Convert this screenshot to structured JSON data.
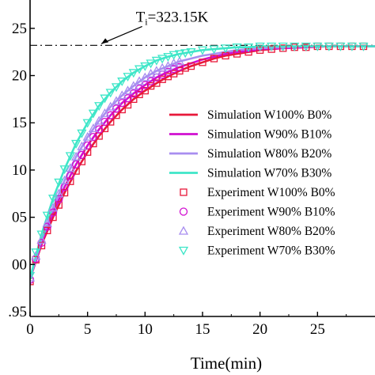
{
  "chart_data": {
    "type": "line",
    "xlabel": "Time(min)",
    "ylabel": "",
    "xlim": [
      0,
      30
    ],
    "ylim": [
      -5.5,
      28
    ],
    "x_ticks": [
      0,
      5,
      10,
      15,
      20,
      25
    ],
    "y_ticks": [
      0,
      5,
      10,
      15,
      20,
      25
    ],
    "x_tick_labels": [
      "0",
      "5",
      "10",
      "15",
      "20",
      "25"
    ],
    "y_tick_labels": [
      ".95",
      "00",
      "05",
      "10",
      "15",
      "20",
      "25"
    ],
    "y_tick_label_values": [
      -5,
      0,
      5,
      10,
      15,
      20,
      25
    ],
    "grid": false,
    "legend_position": "center-right",
    "reference_line": {
      "y": 23.2,
      "style": "dash-dot",
      "label": "T",
      "label_sub": "i",
      "label_value": "=323.15K"
    },
    "simulation_series": [
      {
        "name": "Simulation W100% B0%",
        "color": "#e8183a",
        "x": [
          0,
          1,
          2,
          3,
          4,
          5,
          6,
          7,
          8,
          9,
          10,
          11,
          12,
          13,
          14,
          15,
          16,
          17,
          18,
          19,
          20,
          22,
          24,
          26,
          28,
          30
        ],
        "values": [
          -1.5,
          2.1,
          5.0,
          7.6,
          9.9,
          11.9,
          13.6,
          15.1,
          16.4,
          17.5,
          18.4,
          19.2,
          19.9,
          20.5,
          21.0,
          21.4,
          21.8,
          22.1,
          22.3,
          22.5,
          22.7,
          22.9,
          23.0,
          23.1,
          23.1,
          23.1
        ]
      },
      {
        "name": "Simulation W90% B10%",
        "color": "#d10fd1",
        "x": [
          0,
          1,
          2,
          3,
          4,
          5,
          6,
          7,
          8,
          9,
          10,
          11,
          12,
          13,
          14,
          15,
          16,
          17,
          18,
          19,
          20,
          22,
          24,
          26,
          28,
          30
        ],
        "values": [
          -1.5,
          2.3,
          5.5,
          8.2,
          10.6,
          12.6,
          14.3,
          15.8,
          17.1,
          18.1,
          19.0,
          19.8,
          20.4,
          20.9,
          21.3,
          21.7,
          22.0,
          22.3,
          22.5,
          22.6,
          22.8,
          22.9,
          23.0,
          23.1,
          23.1,
          23.1
        ]
      },
      {
        "name": "Simulation W80% B20%",
        "color": "#a88ef0",
        "x": [
          0,
          1,
          2,
          3,
          4,
          5,
          6,
          7,
          8,
          9,
          10,
          11,
          12,
          13,
          14,
          15,
          16,
          17,
          18,
          19,
          20,
          22,
          24,
          26,
          28,
          30
        ],
        "values": [
          -1.5,
          2.6,
          6.0,
          8.9,
          11.4,
          13.5,
          15.2,
          16.7,
          17.9,
          18.9,
          19.8,
          20.5,
          21.0,
          21.5,
          21.8,
          22.1,
          22.3,
          22.5,
          22.7,
          22.8,
          22.9,
          23.0,
          23.1,
          23.1,
          23.1,
          23.1
        ]
      },
      {
        "name": "Simulation W70% B30%",
        "color": "#3ee6c8",
        "x": [
          0,
          1,
          2,
          3,
          4,
          5,
          6,
          7,
          8,
          9,
          10,
          11,
          12,
          13,
          14,
          15,
          16,
          17,
          18,
          19,
          20,
          22,
          24,
          26,
          28,
          30
        ],
        "values": [
          -1.5,
          3.2,
          7.0,
          10.1,
          12.8,
          15.0,
          16.8,
          18.2,
          19.4,
          20.3,
          21.0,
          21.6,
          22.0,
          22.3,
          22.5,
          22.7,
          22.8,
          22.9,
          23.0,
          23.0,
          23.1,
          23.1,
          23.1,
          23.1,
          23.1,
          23.1
        ]
      }
    ],
    "experiment_series": [
      {
        "name": "Experiment W100% B0%",
        "color": "#e8183a",
        "marker": "square",
        "x": [
          0,
          0.5,
          1,
          1.5,
          2,
          2.5,
          3,
          3.5,
          4,
          4.5,
          5,
          5.5,
          6,
          6.5,
          7,
          7.5,
          8,
          8.5,
          9,
          9.5,
          10,
          10.5,
          11,
          11.5,
          12,
          12.5,
          13,
          13.5,
          14,
          15,
          16,
          17,
          18,
          19,
          20,
          21,
          22,
          23,
          24,
          25,
          26,
          27,
          28,
          29
        ],
        "values": [
          -1.8,
          0.5,
          2.0,
          3.6,
          5.0,
          6.3,
          7.6,
          8.8,
          9.9,
          10.9,
          11.9,
          12.8,
          13.6,
          14.4,
          15.1,
          15.8,
          16.4,
          16.9,
          17.5,
          18.0,
          18.4,
          18.9,
          19.2,
          19.6,
          19.9,
          20.2,
          20.5,
          20.8,
          21.0,
          21.4,
          21.8,
          22.1,
          22.3,
          22.5,
          22.7,
          22.8,
          22.9,
          23.0,
          23.0,
          23.1,
          23.1,
          23.1,
          23.1,
          23.1
        ]
      },
      {
        "name": "Experiment W90% B10%",
        "color": "#d10fd1",
        "marker": "circle",
        "x": [
          0,
          0.5,
          1,
          1.5,
          2,
          2.5,
          3,
          3.5,
          4,
          4.5,
          5,
          5.5,
          6,
          6.5,
          7,
          7.5,
          8,
          8.5,
          9,
          9.5,
          10,
          10.5,
          11,
          11.5,
          12,
          12.5,
          13
        ],
        "values": [
          -1.6,
          0.6,
          2.3,
          4.0,
          5.5,
          6.9,
          8.2,
          9.4,
          10.6,
          11.6,
          12.6,
          13.5,
          14.3,
          15.1,
          15.8,
          16.5,
          17.1,
          17.6,
          18.1,
          18.6,
          19.0,
          19.4,
          19.8,
          20.1,
          20.4,
          20.7,
          20.9
        ]
      },
      {
        "name": "Experiment W80% B20%",
        "color": "#a88ef0",
        "marker": "triangle-up",
        "x": [
          0,
          0.5,
          1,
          1.5,
          2,
          2.5,
          3,
          3.5,
          4,
          4.5,
          5,
          5.5,
          6,
          6.5,
          7,
          7.5,
          8,
          8.5,
          9,
          9.5,
          10,
          10.5,
          11,
          11.5,
          12,
          12.5,
          13
        ],
        "values": [
          -1.4,
          0.9,
          2.6,
          4.4,
          6.0,
          7.5,
          8.9,
          10.2,
          11.4,
          12.5,
          13.5,
          14.4,
          15.2,
          16.0,
          16.7,
          17.3,
          17.9,
          18.4,
          18.9,
          19.4,
          19.8,
          20.2,
          20.5,
          20.8,
          21.0,
          21.3,
          21.5
        ]
      },
      {
        "name": "Experiment W70% B30%",
        "color": "#3ee6c8",
        "marker": "triangle-down",
        "x": [
          0,
          0.5,
          1,
          1.5,
          2,
          2.5,
          3,
          3.5,
          4,
          4.5,
          5,
          5.5,
          6,
          6.5,
          7,
          7.5,
          8,
          8.5,
          9,
          9.5,
          10,
          10.5,
          11,
          11.5,
          12,
          12.5,
          13,
          13.5,
          14,
          15,
          16,
          17,
          18,
          19,
          20,
          21,
          22,
          23,
          24,
          25,
          26,
          27,
          28,
          29
        ],
        "values": [
          -1.2,
          1.3,
          3.2,
          5.2,
          7.0,
          8.7,
          10.1,
          11.5,
          12.8,
          13.9,
          15.0,
          16.0,
          16.8,
          17.6,
          18.2,
          18.8,
          19.4,
          19.9,
          20.3,
          20.7,
          21.0,
          21.3,
          21.6,
          21.8,
          22.0,
          22.2,
          22.3,
          22.4,
          22.5,
          22.7,
          22.8,
          22.9,
          23.0,
          23.0,
          23.1,
          23.1,
          23.1,
          23.1,
          23.1,
          23.1,
          23.1,
          23.1,
          23.1,
          23.1
        ]
      }
    ]
  }
}
